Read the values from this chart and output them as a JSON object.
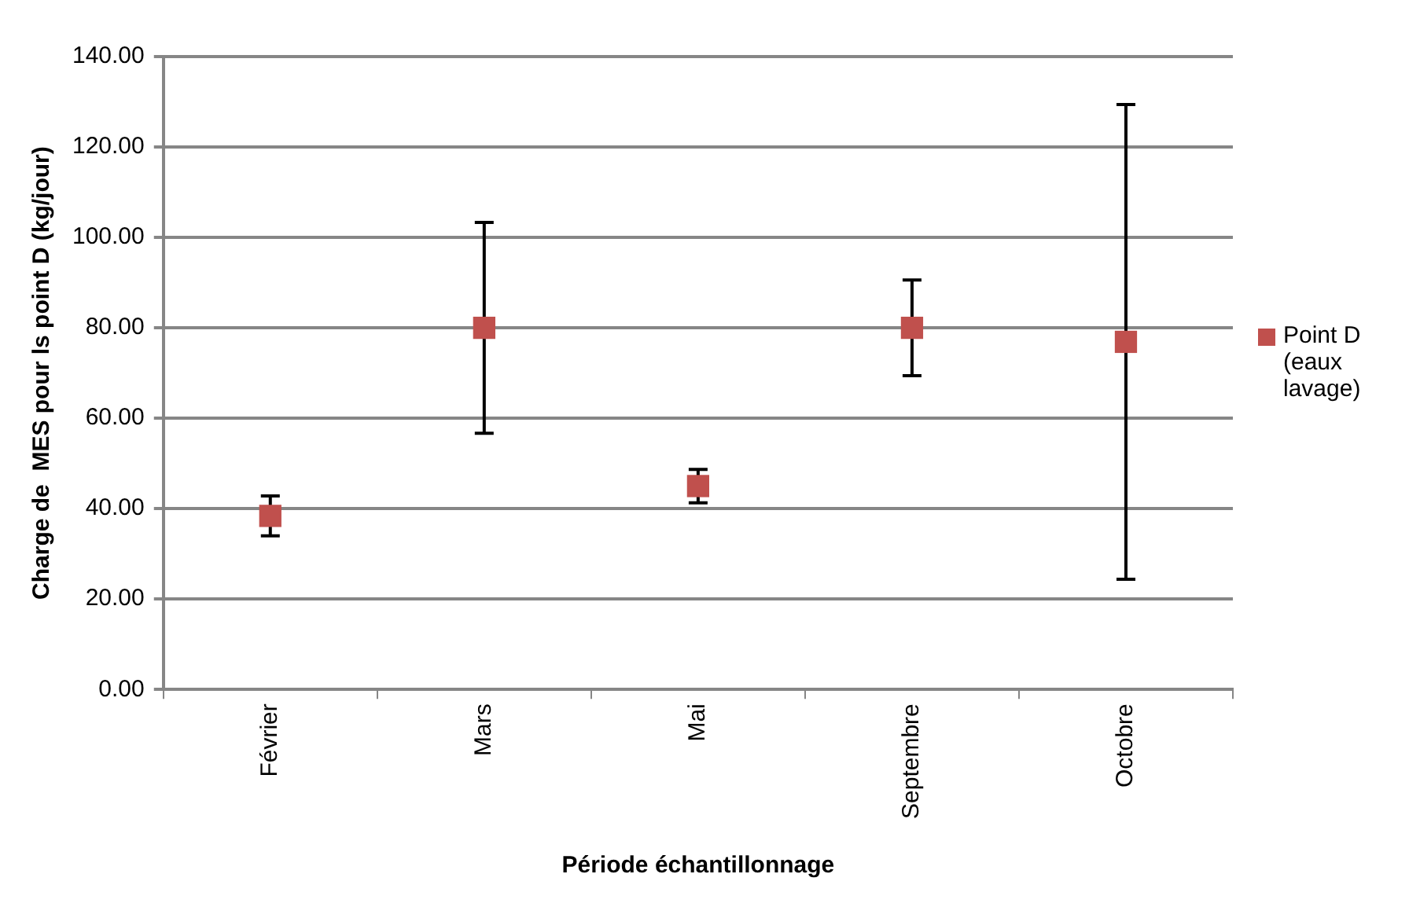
{
  "chart_data": {
    "type": "scatter",
    "xlabel": "Période échantillonnage",
    "ylabel": "Charge de  MES pour ls point D (kg/jour)",
    "categories": [
      "Février",
      "Mars",
      "Mai",
      "Septembre",
      "Octobre"
    ],
    "series": [
      {
        "name": "Point D (eaux lavage)",
        "color": "#c0504d",
        "values": [
          38.4,
          80,
          45,
          80,
          76.9
        ],
        "errors": [
          4.4,
          23.3,
          3.7,
          10.6,
          52.5
        ]
      }
    ],
    "ylim": [
      0,
      140
    ],
    "yticks": [
      {
        "value": 0,
        "label": "0.00"
      },
      {
        "value": 20,
        "label": "20.00"
      },
      {
        "value": 40,
        "label": "40.00"
      },
      {
        "value": 60,
        "label": "60.00"
      },
      {
        "value": 80,
        "label": "80.00"
      },
      {
        "value": 100,
        "label": "100.00"
      },
      {
        "value": 120,
        "label": "120.00"
      },
      {
        "value": 140,
        "label": "140.00"
      }
    ],
    "grid": "y",
    "legend": "right",
    "marker": "square"
  }
}
